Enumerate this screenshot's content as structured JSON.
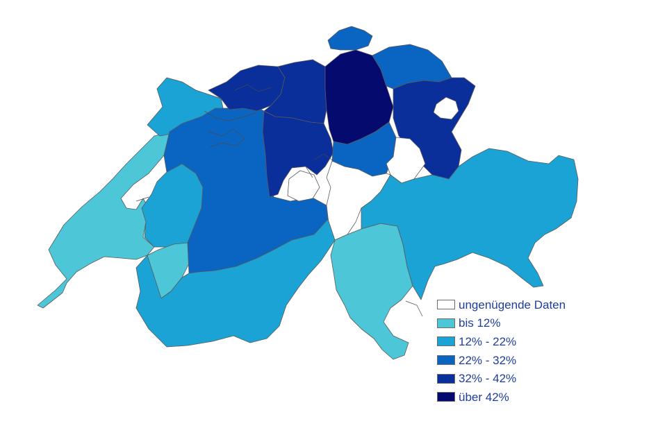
{
  "colors": {
    "ungenuegend": "#ffffff",
    "bis12": "#4dc6d8",
    "c12_22": "#1aa3d4",
    "c22_32": "#0a64c2",
    "c32_42": "#0a2e9a",
    "ueber42": "#040a6e",
    "border": "#5a5a5a",
    "legend_text": "#1f3d9c"
  },
  "legend": [
    {
      "label": "ungenügende Daten",
      "color": "#ffffff"
    },
    {
      "label": "bis 12%",
      "color": "#4dc6d8"
    },
    {
      "label": "12% - 22%",
      "color": "#1aa3d4"
    },
    {
      "label": "22% - 32%",
      "color": "#0a64c2"
    },
    {
      "label": "32% - 42%",
      "color": "#0a2e9a"
    },
    {
      "label": "über 42%",
      "color": "#040a6e"
    }
  ]
}
